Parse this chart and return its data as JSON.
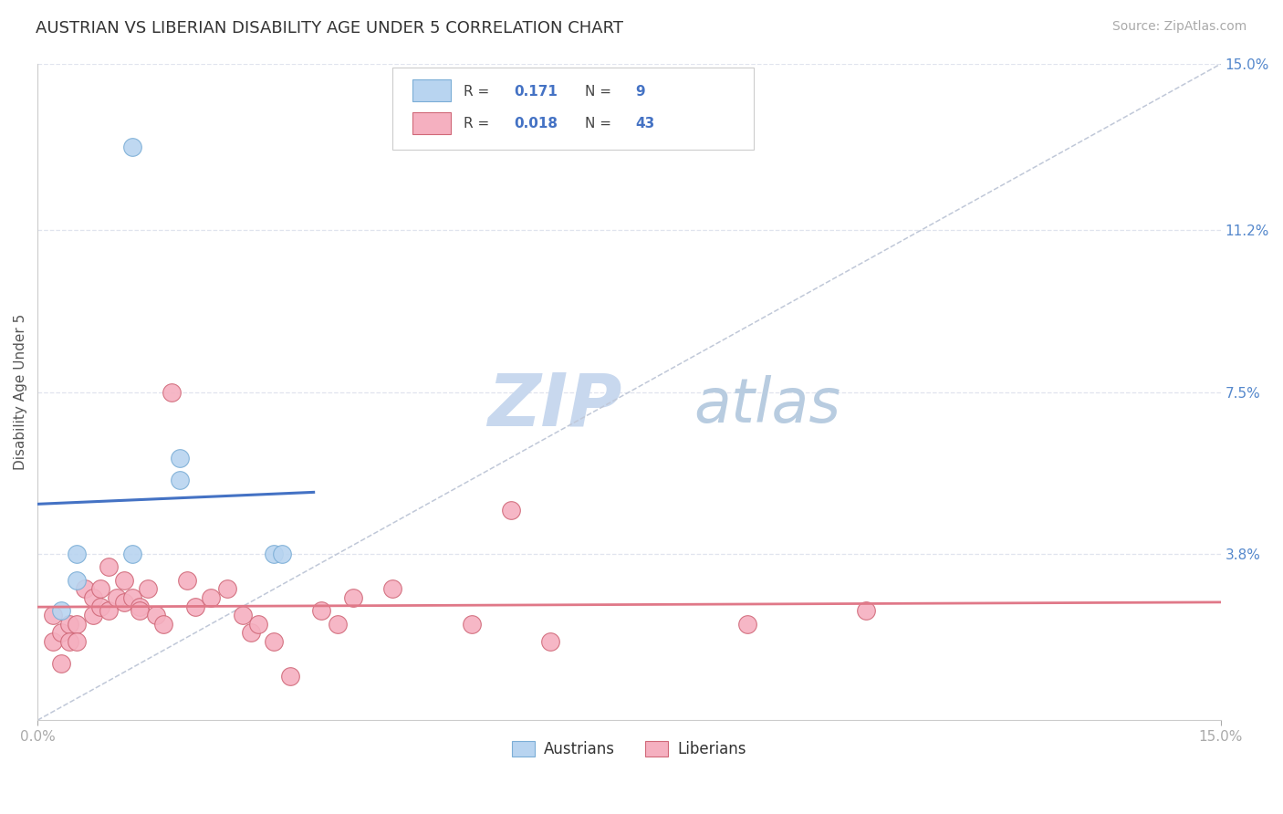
{
  "title": "AUSTRIAN VS LIBERIAN DISABILITY AGE UNDER 5 CORRELATION CHART",
  "source": "Source: ZipAtlas.com",
  "ylabel": "Disability Age Under 5",
  "xlim": [
    0.0,
    0.15
  ],
  "ylim": [
    0.0,
    0.15
  ],
  "ytick_labels": [
    "3.8%",
    "7.5%",
    "11.2%",
    "15.0%"
  ],
  "ytick_values": [
    0.038,
    0.075,
    0.112,
    0.15
  ],
  "background_color": "#ffffff",
  "watermark_zip": "ZIP",
  "watermark_atlas": "atlas",
  "austrians_x": [
    0.012,
    0.018,
    0.018,
    0.012,
    0.005,
    0.005,
    0.003,
    0.03,
    0.031
  ],
  "austrians_y": [
    0.131,
    0.06,
    0.055,
    0.038,
    0.038,
    0.032,
    0.025,
    0.038,
    0.038
  ],
  "liberian_x": [
    0.002,
    0.002,
    0.003,
    0.003,
    0.004,
    0.004,
    0.005,
    0.005,
    0.006,
    0.007,
    0.007,
    0.008,
    0.008,
    0.009,
    0.009,
    0.01,
    0.011,
    0.011,
    0.012,
    0.013,
    0.013,
    0.014,
    0.015,
    0.016,
    0.017,
    0.019,
    0.02,
    0.022,
    0.024,
    0.026,
    0.027,
    0.028,
    0.03,
    0.032,
    0.036,
    0.038,
    0.04,
    0.045,
    0.055,
    0.06,
    0.065,
    0.09,
    0.105
  ],
  "liberian_y": [
    0.024,
    0.018,
    0.02,
    0.013,
    0.022,
    0.018,
    0.022,
    0.018,
    0.03,
    0.028,
    0.024,
    0.03,
    0.026,
    0.035,
    0.025,
    0.028,
    0.032,
    0.027,
    0.028,
    0.026,
    0.025,
    0.03,
    0.024,
    0.022,
    0.075,
    0.032,
    0.026,
    0.028,
    0.03,
    0.024,
    0.02,
    0.022,
    0.018,
    0.01,
    0.025,
    0.022,
    0.028,
    0.03,
    0.022,
    0.048,
    0.018,
    0.022,
    0.025
  ],
  "blue_fill": "#b8d4f0",
  "blue_edge": "#7baed6",
  "blue_line_color": "#4472c4",
  "pink_fill": "#f5b0c0",
  "pink_edge": "#d06878",
  "pink_line_color": "#e07888",
  "dashed_line_color": "#c0c8d8",
  "grid_color": "#e0e4ee",
  "title_fontsize": 13,
  "axis_label_fontsize": 11,
  "tick_fontsize": 11,
  "source_fontsize": 10,
  "watermark_zip_color": "#c8d8ee",
  "watermark_atlas_color": "#b8cce0",
  "legend_text_color": "#4472c4",
  "legend_label_color": "#333333"
}
